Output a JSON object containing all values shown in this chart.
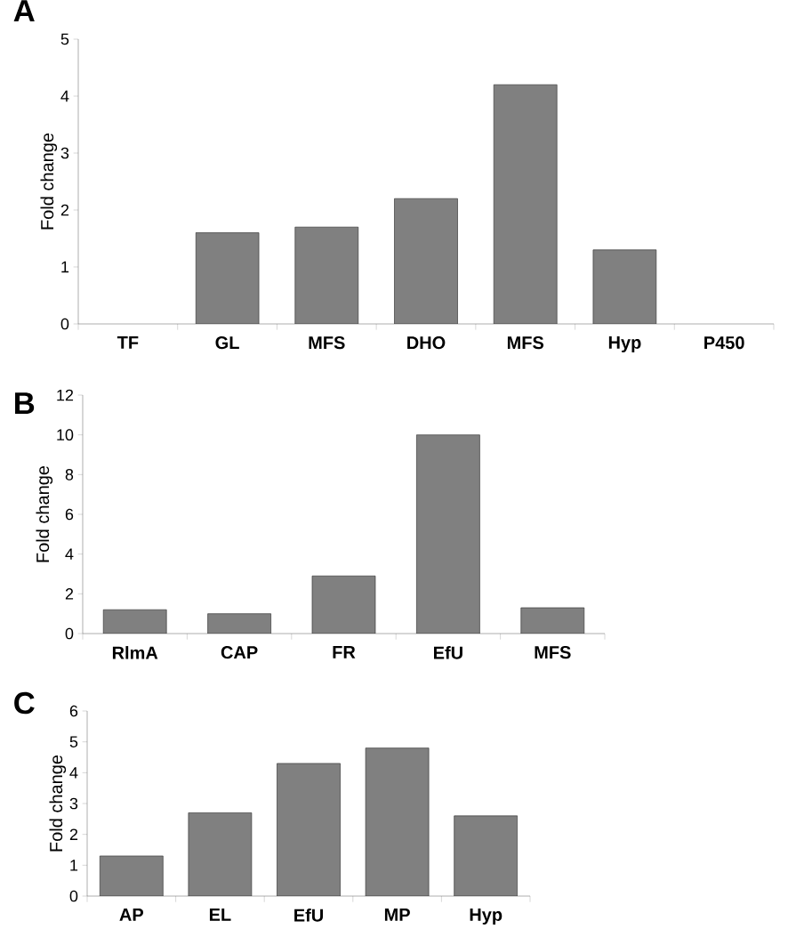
{
  "chart_data": [
    {
      "type": "bar",
      "title": "A",
      "ylabel": "Fold change",
      "categories": [
        "TF",
        "GL",
        "MFS",
        "DHO",
        "MFS",
        "Hyp",
        "P450"
      ],
      "values": [
        null,
        1.6,
        1.7,
        2.2,
        4.2,
        1.3,
        null
      ],
      "color": "#808080",
      "ylim": [
        0,
        5
      ],
      "yticks": [
        0,
        1,
        2,
        3,
        4,
        5
      ]
    },
    {
      "type": "bar",
      "title": "B",
      "ylabel": "Fold change",
      "categories": [
        "RlmA",
        "CAP",
        "FR",
        "EfU",
        "MFS"
      ],
      "values": [
        1.2,
        1.0,
        2.9,
        10,
        1.3
      ],
      "color": "#808080",
      "ylim": [
        0,
        12
      ],
      "yticks": [
        0,
        2,
        4,
        6,
        8,
        10,
        12
      ]
    },
    {
      "type": "bar",
      "title": "C",
      "ylabel": "Fold change",
      "categories": [
        "AP",
        "EL",
        "EfU",
        "MP",
        "Hyp"
      ],
      "values": [
        1.3,
        2.7,
        4.3,
        4.8,
        2.6
      ],
      "color": "#808080",
      "ylim": [
        0,
        6
      ],
      "yticks": [
        0,
        1,
        2,
        3,
        4,
        5,
        6
      ]
    }
  ]
}
